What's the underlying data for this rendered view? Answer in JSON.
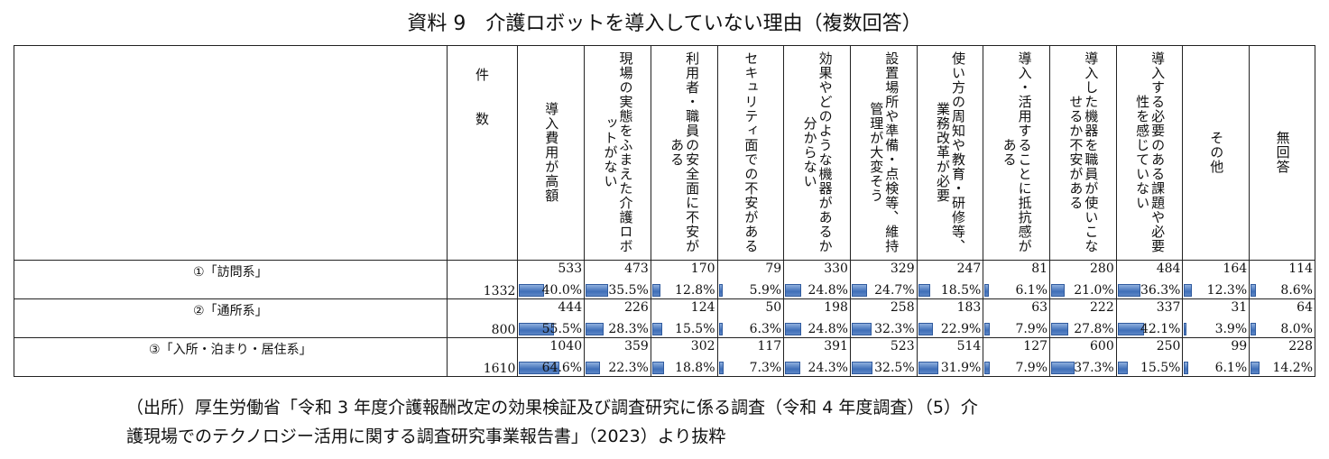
{
  "title": "資料 9　介護ロボットを導入していない理由（複数回答）",
  "header_n": "件数",
  "columns": [
    "導入費用が高額",
    "現場の実態をふまえた介護ロボットがない",
    "利用者・職員の安全面に不安がある",
    "セキュリティ面での不安がある",
    "効果やどのような機器があるか分からない",
    "設置場所や準備・点検等、維持管理が大変そう",
    "使い方の周知や教育・研修等、業務改革が必要",
    "導入・活用することに抵抗感がある",
    "導入した機器を職員が使いこなせるか不安がある",
    "導入する必要のある課題や必要性を感じていない",
    "その他",
    "無回答"
  ],
  "header_lines": [
    [
      "導入費用が高額"
    ],
    [
      "現場の実態をふまえた介",
      "護ロボットがない"
    ],
    [
      "利用者・職員の安全面に",
      "不安がある"
    ],
    [
      "セキュリティ面での不安",
      "がある"
    ],
    [
      "効果やどのような機器が",
      "あるか分からない"
    ],
    [
      "設置場所や準備・点検",
      "等、維持管理が大変そう"
    ],
    [
      "使い方の周知や教育・研",
      "修等、業務改革が必要"
    ],
    [
      "導入・活用することに抵",
      "抗感がある"
    ],
    [
      "導入した機器を職員が使",
      "いこなせるか不安がある"
    ],
    [
      "導入する必要のある課題",
      "や必要性を感じていない"
    ],
    [
      "その他"
    ],
    [
      "無回答"
    ]
  ],
  "rows": [
    {
      "label": "①「訪問系」",
      "n": "1332",
      "counts": [
        "533",
        "473",
        "170",
        "79",
        "330",
        "329",
        "247",
        "81",
        "280",
        "484",
        "164",
        "114"
      ],
      "pcts": [
        "40.0%",
        "35.5%",
        "12.8%",
        "5.9%",
        "24.8%",
        "24.7%",
        "18.5%",
        "6.1%",
        "21.0%",
        "36.3%",
        "12.3%",
        "8.6%"
      ],
      "values": [
        40.0,
        35.5,
        12.8,
        5.9,
        24.8,
        24.7,
        18.5,
        6.1,
        21.0,
        36.3,
        12.3,
        8.6
      ]
    },
    {
      "label": "②「通所系」",
      "n": "800",
      "counts": [
        "444",
        "226",
        "124",
        "50",
        "198",
        "258",
        "183",
        "63",
        "222",
        "337",
        "31",
        "64"
      ],
      "pcts": [
        "55.5%",
        "28.3%",
        "15.5%",
        "6.3%",
        "24.8%",
        "32.3%",
        "22.9%",
        "7.9%",
        "27.8%",
        "42.1%",
        "3.9%",
        "8.0%"
      ],
      "values": [
        55.5,
        28.3,
        15.5,
        6.3,
        24.8,
        32.3,
        22.9,
        7.9,
        27.8,
        42.1,
        3.9,
        8.0
      ]
    },
    {
      "label": "③「入所・泊まり・居住系」",
      "n": "1610",
      "counts": [
        "1040",
        "359",
        "302",
        "117",
        "391",
        "523",
        "514",
        "127",
        "600",
        "250",
        "99",
        "228"
      ],
      "pcts": [
        "64.6%",
        "22.3%",
        "18.8%",
        "7.3%",
        "24.3%",
        "32.5%",
        "31.9%",
        "7.9%",
        "37.3%",
        "15.5%",
        "6.1%",
        "14.2%"
      ],
      "values": [
        64.6,
        22.3,
        18.8,
        7.3,
        24.3,
        32.5,
        31.9,
        7.9,
        37.3,
        15.5,
        6.1,
        14.2
      ]
    }
  ],
  "source_line1": "（出所）厚生労働省「令和 3 年度介護報酬改定の効果検証及び調査研究に係る調査（令和 4 年度調査）（5）介",
  "source_line2": "護現場でのテクノロジー活用に関する調査研究事業報告書」（2023）より抜粋",
  "bar_color": "#4a78bf"
}
